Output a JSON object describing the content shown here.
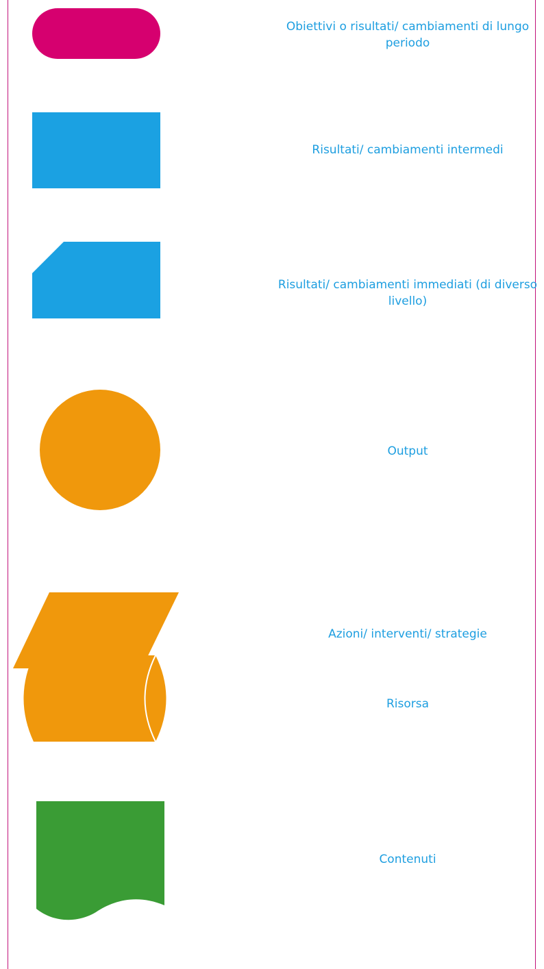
{
  "legend": {
    "items": [
      {
        "shape": "rounded-rectangle",
        "color": "#d6006f",
        "label": "Obiettivi o risultati/ cambiamenti di lungo periodo"
      },
      {
        "shape": "rectangle",
        "color": "#1ba1e2",
        "label": "Risultati/ cambiamenti intermedi"
      },
      {
        "shape": "snipped-corner-rectangle",
        "color": "#1ba1e2",
        "label": "Risultati/ cambiamenti immediati (di diverso livello)"
      },
      {
        "shape": "circle",
        "color": "#f0980c",
        "label": "Output"
      },
      {
        "shape": "parallelogram",
        "color": "#f0980c",
        "label": "Azioni/ interventi/ strategie"
      },
      {
        "shape": "stored-data",
        "color": "#f0980c",
        "label": "Risorsa"
      },
      {
        "shape": "document",
        "color": "#3a9c35",
        "label": "Contenuti"
      }
    ]
  },
  "colors": {
    "border": "#c0127a",
    "label_text": "#1d9ee0"
  }
}
